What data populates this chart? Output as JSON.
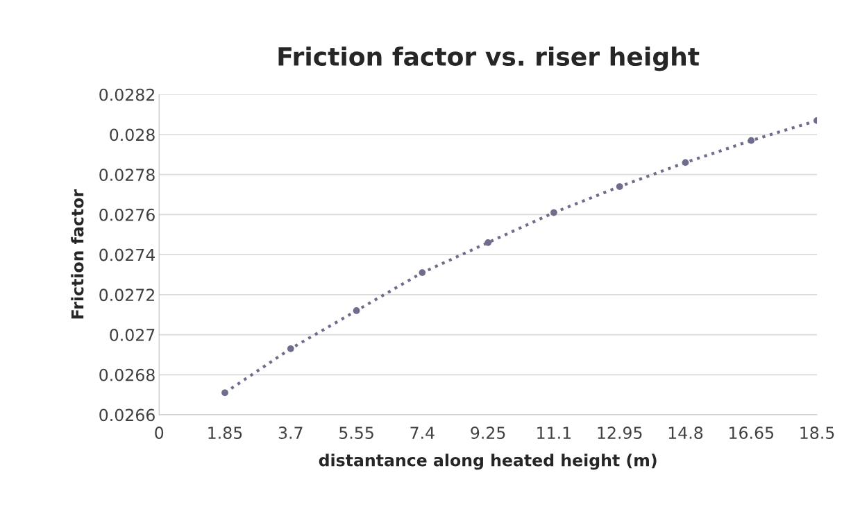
{
  "chart_data": {
    "type": "line",
    "title": "Friction factor vs. riser height",
    "xlabel": "distantance along heated height (m)",
    "ylabel": "Friction factor",
    "x": [
      1.85,
      3.7,
      5.55,
      7.4,
      9.25,
      11.1,
      12.95,
      14.8,
      16.65,
      18.5
    ],
    "series": [
      {
        "color": "#6e6e8c",
        "values": [
          0.02671,
          0.02693,
          0.02712,
          0.02731,
          0.02746,
          0.02761,
          0.02774,
          0.02786,
          0.02797,
          0.02807
        ]
      }
    ],
    "xlim": [
      0,
      18.5
    ],
    "xticks": [
      0,
      1.85,
      3.7,
      5.55,
      7.4,
      9.25,
      11.1,
      12.95,
      14.8,
      16.65,
      18.5
    ],
    "ylim": [
      0.0266,
      0.0282
    ],
    "yticks": [
      0.0266,
      0.0268,
      0.027,
      0.0272,
      0.0274,
      0.0276,
      0.0278,
      0.028,
      0.0282
    ],
    "grid": "y",
    "marker": "circle",
    "line_style": "dotted"
  }
}
